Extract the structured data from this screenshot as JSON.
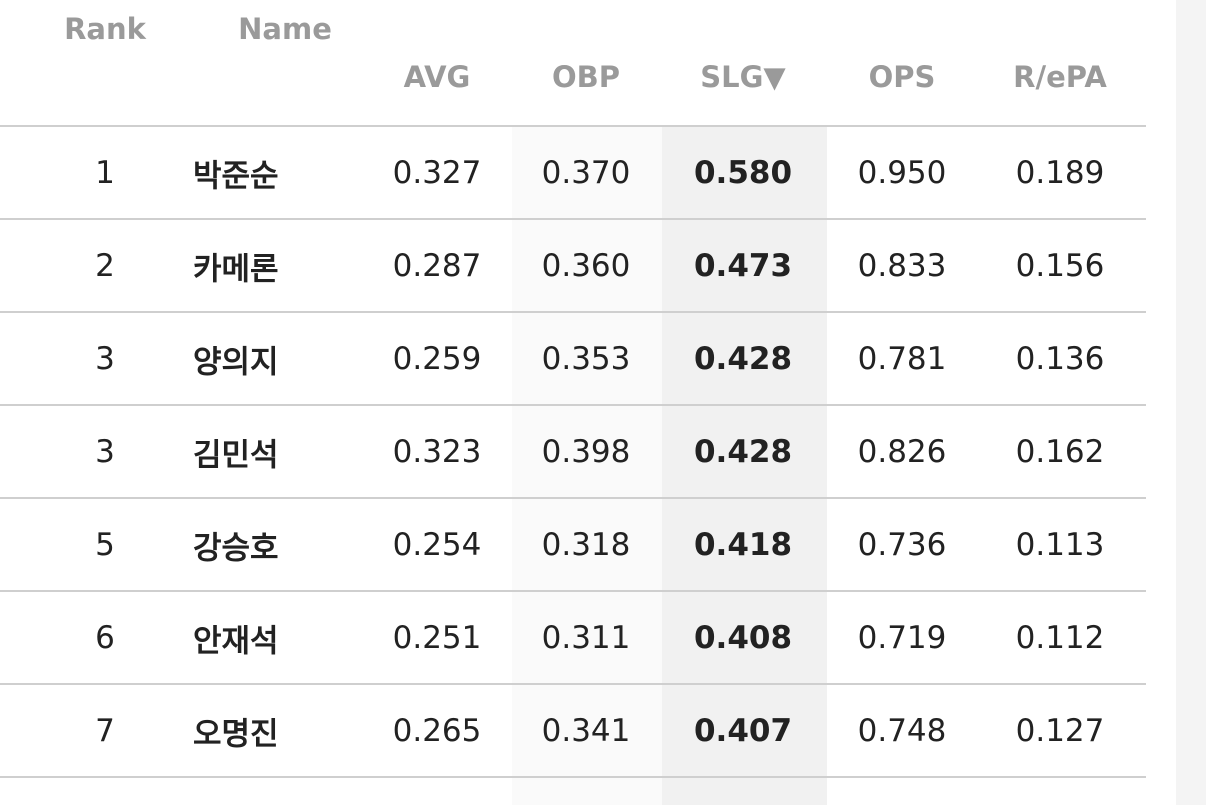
{
  "table": {
    "headers": [
      "Rank",
      "Name",
      "AVG",
      "OBP",
      "SLG▼",
      "OPS",
      "R/ePA"
    ],
    "rows": [
      [
        "1",
        "박준순",
        "0.327",
        "0.370",
        "0.580",
        "0.950",
        "0.189"
      ],
      [
        "2",
        "카메론",
        "0.287",
        "0.360",
        "0.473",
        "0.833",
        "0.156"
      ],
      [
        "3",
        "양의지",
        "0.259",
        "0.353",
        "0.428",
        "0.781",
        "0.136"
      ],
      [
        "3",
        "김민석",
        "0.323",
        "0.398",
        "0.428",
        "0.826",
        "0.162"
      ],
      [
        "5",
        "강승호",
        "0.254",
        "0.318",
        "0.418",
        "0.736",
        "0.113"
      ],
      [
        "6",
        "안재석",
        "0.251",
        "0.311",
        "0.408",
        "0.719",
        "0.112"
      ],
      [
        "7",
        "오명진",
        "0.265",
        "0.341",
        "0.407",
        "0.748",
        "0.127"
      ]
    ]
  }
}
